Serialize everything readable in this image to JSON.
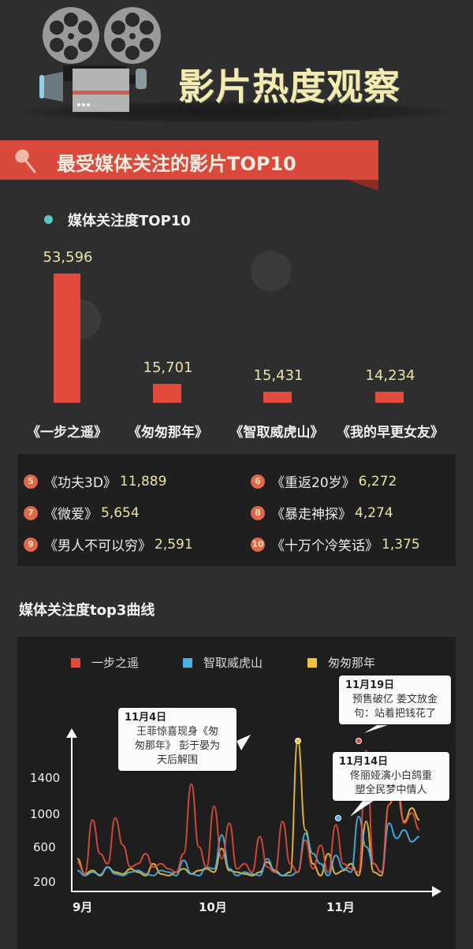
{
  "header": {
    "icon": "film-projector-icon",
    "title": "影片热度观察"
  },
  "section": {
    "icon": "pushpin-icon",
    "title": "最受媒体关注的影片TOP10"
  },
  "bar_chart": {
    "legend_label": "媒体关注度TOP10",
    "legend_color": "#5ec8c0",
    "bar_color": "#e24b3c",
    "items": [
      {
        "label": "《一步之遥》",
        "value_text": "53,596",
        "value": 53596
      },
      {
        "label": "《匆匆那年》",
        "value_text": "15,701",
        "value": 15701
      },
      {
        "label": "《智取威虎山》",
        "value_text": "15,431",
        "value": 15431
      },
      {
        "label": "《我的早更女友》",
        "value_text": "14,234",
        "value": 14234
      }
    ]
  },
  "ranking": {
    "items": [
      {
        "rank": "5",
        "title": "《功夫3D》",
        "value": "11,889"
      },
      {
        "rank": "6",
        "title": "《重返20岁》",
        "value": "6,272"
      },
      {
        "rank": "7",
        "title": "《微爱》",
        "value": "5,654"
      },
      {
        "rank": "8",
        "title": "《暴走神探》",
        "value": "4,274"
      },
      {
        "rank": "9",
        "title": "《男人不可以穷》",
        "value": "2,591"
      },
      {
        "rank": "10",
        "title": "《十万个冷笑话》",
        "value": "1,375"
      }
    ]
  },
  "line_section": {
    "title": "媒体关注度top3曲线"
  },
  "chart_data": [
    {
      "type": "bar",
      "title": "媒体关注度TOP10",
      "categories": [
        "《一步之遥》",
        "《匆匆那年》",
        "《智取威虎山》",
        "《我的早更女友》",
        "《功夫3D》",
        "《重返20岁》",
        "《微爱》",
        "《暴走神探》",
        "《男人不可以穷》",
        "《十万个冷笑话》"
      ],
      "values": [
        53596,
        15701,
        15431,
        14234,
        11889,
        6272,
        5654,
        4274,
        2591,
        1375
      ],
      "xlabel": "",
      "ylabel": "",
      "grid": false
    },
    {
      "type": "line",
      "title": "媒体关注度top3曲线",
      "x_ticks": [
        "9月",
        "10月",
        "11月"
      ],
      "y_ticks": [
        "200",
        "600",
        "1000",
        "1400"
      ],
      "ylim": [
        0,
        1800
      ],
      "grid": false,
      "legend_position": "top",
      "series": [
        {
          "name": "一步之遥",
          "color": "#e04b3e",
          "values": [
            320,
            180,
            820,
            420,
            300,
            840,
            520,
            260,
            300,
            420,
            260,
            300,
            240,
            200,
            420,
            1240,
            500,
            260,
            980,
            360,
            780,
            240,
            300,
            200,
            620,
            260,
            200,
            800,
            300,
            200,
            580,
            240,
            520,
            200,
            760,
            300,
            240,
            200,
            1640,
            300,
            200,
            1000,
            1400,
            780,
            900,
            700
          ]
        },
        {
          "name": "智取威虎山",
          "color": "#4ab3e6",
          "values": [
            220,
            160,
            200,
            170,
            260,
            180,
            160,
            200,
            220,
            180,
            160,
            220,
            200,
            160,
            340,
            180,
            160,
            260,
            240,
            640,
            240,
            160,
            200,
            180,
            160,
            360,
            200,
            160,
            160,
            200,
            660,
            420,
            300,
            160,
            400,
            240,
            200,
            860,
            500,
            300,
            200,
            780,
            600,
            700,
            560,
            620
          ]
        },
        {
          "name": "匆匆那年",
          "color": "#f0c33c",
          "values": [
            360,
            180,
            220,
            160,
            260,
            200,
            180,
            240,
            200,
            160,
            300,
            180,
            160,
            200,
            240,
            180,
            220,
            240,
            200,
            480,
            220,
            200,
            180,
            160,
            200,
            320,
            220,
            160,
            200,
            1760,
            700,
            300,
            160,
            420,
            180,
            220,
            300,
            160,
            800,
            200,
            160,
            1000,
            1200,
            800,
            960,
            820
          ]
        }
      ],
      "annotations": [
        {
          "date": "11月4日",
          "text": "王菲惊喜现身《匆匆那年》 彭于晏为天后解围"
        },
        {
          "date": "11月19日",
          "text": "预售破亿 姜文放金句：站着把钱花了"
        },
        {
          "date": "11月14日",
          "text": "佟丽娅演小白鸽重塑全民梦中情人"
        }
      ]
    }
  ],
  "line_chart": {
    "legend": [
      {
        "name": "一步之遥",
        "color": "#e04b3e"
      },
      {
        "name": "智取威虎山",
        "color": "#4ab3e6"
      },
      {
        "name": "匆匆那年",
        "color": "#f0c33c"
      }
    ],
    "y_ticks": [
      "1400",
      "1000",
      "600",
      "200"
    ],
    "x_ticks": [
      "9月",
      "10月",
      "11月"
    ],
    "callouts": [
      {
        "date": "11月4日",
        "lines": [
          "王菲惊喜现身《匆",
          "匆那年》 彭于晏为",
          "天后解围"
        ]
      },
      {
        "date": "11月19日",
        "lines": [
          "预售破亿 姜文放金",
          "句：站着把钱花了"
        ]
      },
      {
        "date": "11月14日",
        "lines": [
          "佟丽娅演小白鸽重",
          "塑全民梦中情人"
        ]
      }
    ]
  }
}
